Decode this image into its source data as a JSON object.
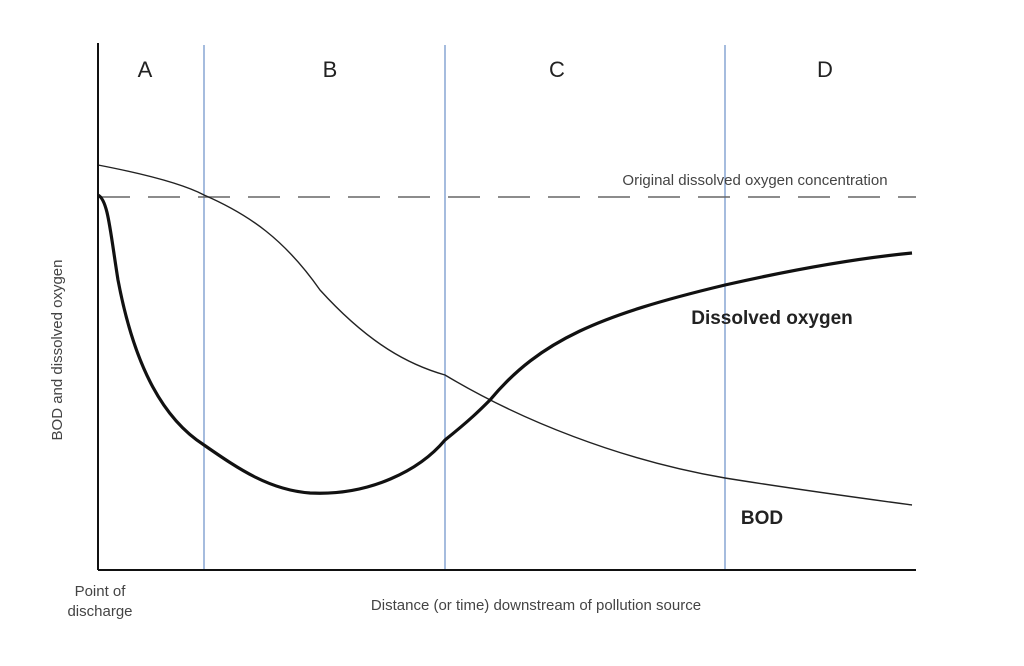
{
  "zones": [
    "A",
    "B",
    "C",
    "D"
  ],
  "reference_label": "Original dissolved oxygen concentration",
  "curves": {
    "dissolved_oxygen": "Dissolved oxygen",
    "bod": "BOD"
  },
  "y_axis_label": "BOD and dissolved oxygen",
  "origin_label": [
    "Point of",
    "discharge"
  ],
  "x_axis_label": "Distance (or time) downstream of pollution source"
}
